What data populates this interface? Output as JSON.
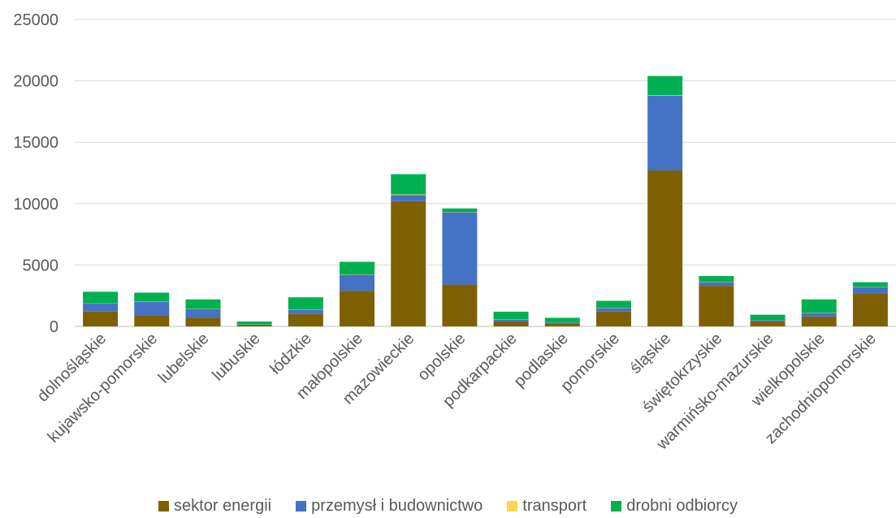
{
  "chart_data": {
    "type": "bar",
    "stacked": true,
    "categories": [
      "dolnośląskie",
      "kujawsko-pomorskie",
      "lubelskie",
      "lubuskie",
      "łódzkie",
      "małopolskie",
      "mazowieckie",
      "opolskie",
      "podkarpackie",
      "podlaskie",
      "pomorskie",
      "śląskie",
      "świętokrzyskie",
      "warmińsko-mazurskie",
      "wielkopolskie",
      "zachodniopomorskie"
    ],
    "series": [
      {
        "name": "sektor energii",
        "color": "#7f6000",
        "values": [
          1200,
          900,
          700,
          100,
          1000,
          2900,
          10200,
          3400,
          400,
          200,
          1200,
          12700,
          3300,
          400,
          800,
          2700
        ]
      },
      {
        "name": "przemysł i budownictwo",
        "color": "#4472c4",
        "values": [
          650,
          1100,
          700,
          50,
          350,
          1300,
          500,
          5900,
          150,
          100,
          300,
          6100,
          300,
          100,
          300,
          500
        ]
      },
      {
        "name": "transport",
        "color": "#ffd54f",
        "values": [
          20,
          20,
          20,
          10,
          20,
          30,
          50,
          20,
          20,
          10,
          20,
          30,
          20,
          10,
          20,
          20
        ]
      },
      {
        "name": "drobni odbiorcy",
        "color": "#00b050",
        "values": [
          950,
          730,
          780,
          240,
          1000,
          1030,
          1650,
          290,
          630,
          390,
          560,
          1570,
          480,
          440,
          1080,
          380
        ]
      }
    ],
    "ylim": [
      0,
      25000
    ],
    "yticks": [
      0,
      5000,
      10000,
      15000,
      20000,
      25000
    ],
    "grid": true,
    "legend_position": "bottom"
  }
}
